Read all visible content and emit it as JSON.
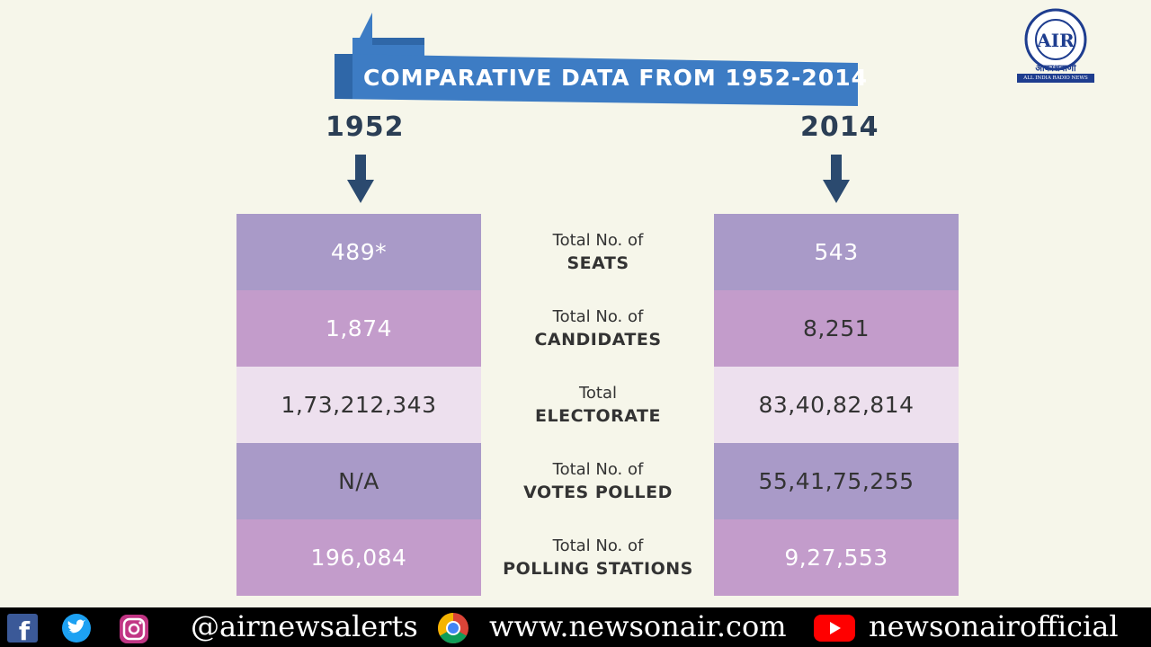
{
  "header": {
    "banner_title": "COMPARATIVE DATA FROM 1952-2014",
    "year_left": "1952",
    "year_right": "2014",
    "banner_color": "#3d7cc4"
  },
  "logo": {
    "hindi_text": "आकाशवाणी",
    "tagline": "ALL INDIA RADIO NEWS",
    "emblem_text": "AIR",
    "color": "#1e3d8f"
  },
  "rows": [
    {
      "label_top": "Total No. of",
      "label_bottom": "SEATS",
      "value_1952": "489*",
      "value_2014": "543"
    },
    {
      "label_top": "Total No. of",
      "label_bottom": "CANDIDATES",
      "value_1952": "1,874",
      "value_2014": "8,251"
    },
    {
      "label_top": "Total",
      "label_bottom": "ELECTORATE",
      "value_1952": "1,73,212,343",
      "value_2014": "83,40,82,814"
    },
    {
      "label_top": "Total No. of",
      "label_bottom": "VOTES POLLED",
      "value_1952": "N/A",
      "value_2014": "55,41,75,255"
    },
    {
      "label_top": "Total No. of",
      "label_bottom": "POLLING STATIONS",
      "value_1952": "196,084",
      "value_2014": "9,27,553"
    }
  ],
  "footer": {
    "twitter_handle": "@airnewsalerts",
    "website": "www.newsonair.com",
    "youtube_channel": "newsonairofficial",
    "icons": [
      "facebook-icon",
      "twitter-icon",
      "instagram-icon",
      "chrome-icon",
      "youtube-icon"
    ]
  }
}
